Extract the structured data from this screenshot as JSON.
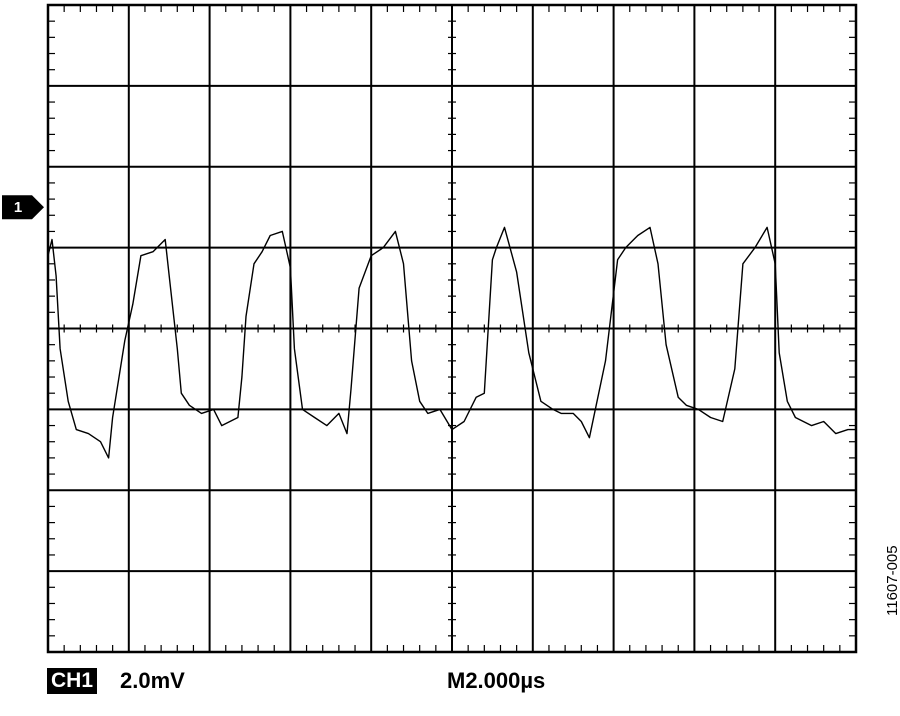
{
  "chart_data": {
    "type": "line",
    "title": "",
    "xlabel": "",
    "ylabel": "",
    "grid": true,
    "divisions": {
      "horizontal": 10,
      "vertical": 8
    },
    "ground_marker_label": "1",
    "ground_marker_division": 1.5,
    "channel_label": "CH1",
    "vertical_scale": "2.0mV",
    "timebase": "M2.000µs",
    "figure_id": "11607-005",
    "units": {
      "x": "µs",
      "y": "mV"
    },
    "xlim": [
      0,
      20
    ],
    "ylim": [
      -8,
      8
    ],
    "series": [
      {
        "x": [
          0.0,
          0.1,
          0.2,
          0.3,
          0.5,
          0.7,
          1.0,
          1.3,
          1.5,
          1.6,
          1.9,
          2.1,
          2.3,
          2.6,
          2.9,
          3.0,
          3.2,
          3.3,
          3.5,
          3.8,
          4.1,
          4.3,
          4.7,
          4.8,
          4.9,
          5.1,
          5.3,
          5.5,
          5.8,
          6.0,
          6.1,
          6.3,
          6.6,
          6.9,
          7.2,
          7.4,
          7.5,
          7.7,
          8.0,
          8.3,
          8.6,
          8.8,
          9.0,
          9.2,
          9.4,
          9.7,
          10.0,
          10.3,
          10.6,
          10.8,
          11.0,
          11.1,
          11.3,
          11.6,
          11.9,
          12.2,
          12.5,
          12.7,
          13.0,
          13.2,
          13.4,
          13.8,
          14.1,
          14.3,
          14.6,
          14.9,
          15.1,
          15.3,
          15.6,
          15.8,
          16.1,
          16.4,
          16.7,
          17.0,
          17.2,
          17.5,
          17.8,
          18.0,
          18.1,
          18.3,
          18.5,
          18.9,
          19.2,
          19.5,
          19.8,
          20.0
        ],
        "y": [
          1.8,
          2.2,
          1.3,
          -0.5,
          -1.8,
          -2.5,
          -2.6,
          -2.8,
          -3.2,
          -2.2,
          -0.3,
          0.6,
          1.8,
          1.9,
          2.2,
          1.3,
          -0.5,
          -1.6,
          -1.9,
          -2.1,
          -2.0,
          -2.4,
          -2.2,
          -1.2,
          0.3,
          1.6,
          1.9,
          2.3,
          2.4,
          1.5,
          -0.5,
          -2.0,
          -2.2,
          -2.4,
          -2.1,
          -2.6,
          -1.5,
          1.0,
          1.8,
          2.0,
          2.4,
          1.6,
          -0.8,
          -1.8,
          -2.1,
          -2.0,
          -2.5,
          -2.3,
          -1.7,
          -1.6,
          1.7,
          2.0,
          2.5,
          1.4,
          -0.6,
          -1.8,
          -2.0,
          -2.1,
          -2.1,
          -2.3,
          -2.7,
          -0.8,
          1.7,
          2.0,
          2.3,
          2.5,
          1.6,
          -0.4,
          -1.7,
          -1.9,
          -2.0,
          -2.2,
          -2.3,
          -1.0,
          1.6,
          2.0,
          2.5,
          1.6,
          -0.6,
          -1.8,
          -2.2,
          -2.4,
          -2.3,
          -2.6,
          -2.5,
          -2.5
        ]
      }
    ]
  }
}
